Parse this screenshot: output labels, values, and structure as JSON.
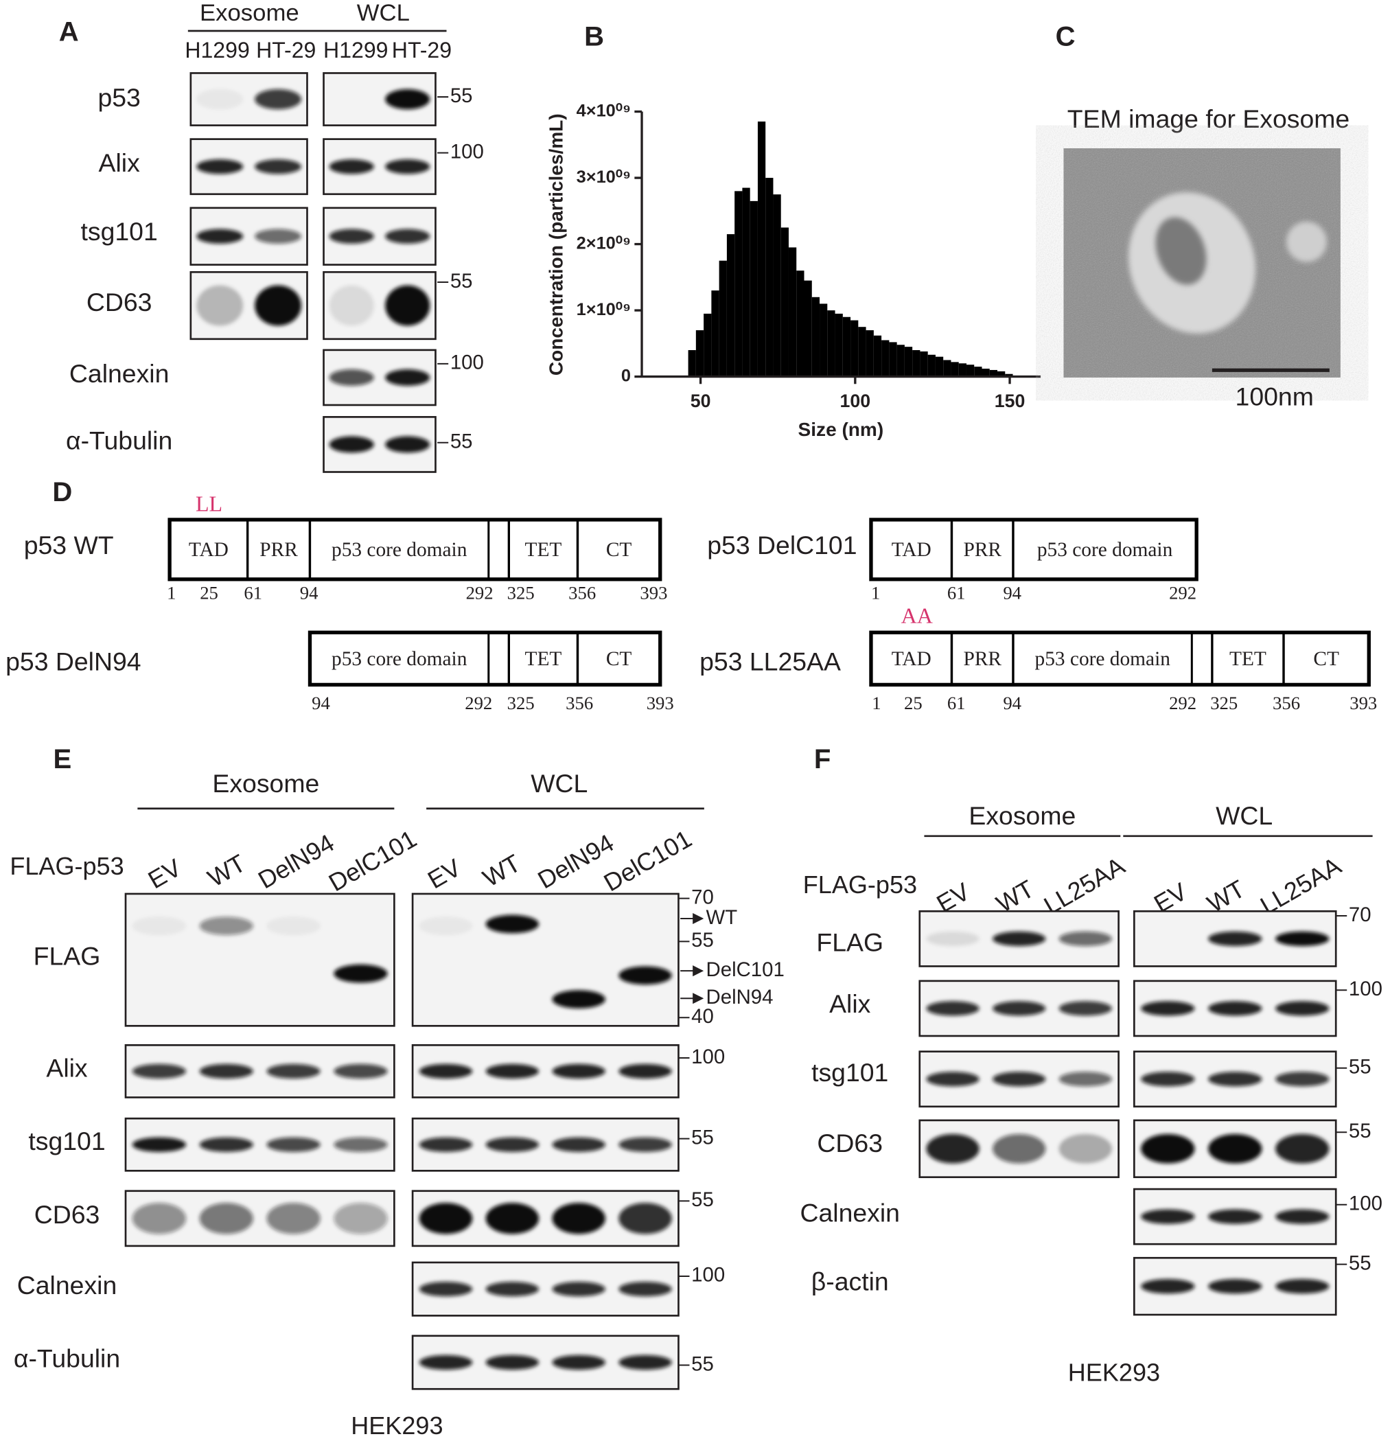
{
  "panel_labels": [
    "A",
    "B",
    "C",
    "D",
    "E",
    "F"
  ],
  "panel_a": {
    "groups": [
      "Exosome",
      "WCL"
    ],
    "lanes": [
      "H1299",
      "HT-29",
      "H1299",
      "HT-29"
    ],
    "rows": [
      {
        "label": "p53",
        "markers": [
          55
        ]
      },
      {
        "label": "Alix",
        "markers": [
          100
        ]
      },
      {
        "label": "tsg101"
      },
      {
        "label": "CD63",
        "markers": [
          55
        ]
      },
      {
        "label": "Calnexin",
        "markers": [
          100
        ]
      },
      {
        "label": "α-Tubulin",
        "markers": [
          55
        ]
      }
    ]
  },
  "panel_b": {
    "type": "histogram",
    "x_label": "Size (nm)",
    "y_label": "Concentration (particles/mL)",
    "bins": [
      46,
      48.5,
      51,
      53.5,
      56,
      58.5,
      61,
      63.5,
      66,
      68.5,
      71,
      73.5,
      76,
      78.5,
      81,
      83.5,
      86,
      88.5,
      91,
      93.5,
      96,
      98.5,
      101,
      103.5,
      106,
      108.5,
      111,
      113.5,
      116,
      118.5,
      121,
      123.5,
      126,
      128.5,
      131,
      133.5,
      136,
      138.5,
      141,
      143.5,
      146,
      148.5,
      151
    ],
    "values": [
      400000000.0,
      700000000.0,
      950000000.0,
      1300000000.0,
      1750000000.0,
      2150000000.0,
      2800000000.0,
      2850000000.0,
      2650000000.0,
      3850000000.0,
      3000000000.0,
      2750000000.0,
      2250000000.0,
      1950000000.0,
      1600000000.0,
      1450000000.0,
      1200000000.0,
      1100000000.0,
      1000000000.0,
      950000000.0,
      900000000.0,
      850000000.0,
      750000000.0,
      700000000.0,
      620000000.0,
      550000000.0,
      520000000.0,
      480000000.0,
      450000000.0,
      400000000.0,
      380000000.0,
      330000000.0,
      300000000.0,
      250000000.0,
      220000000.0,
      200000000.0,
      180000000.0,
      150000000.0,
      120000000.0,
      100000000.0,
      80000000.0,
      40000000.0
    ],
    "color": "#000000",
    "xlim": [
      31,
      160
    ],
    "ylim": [
      0,
      4000000000.0
    ],
    "xticks": [
      50,
      100,
      150
    ],
    "yticks": [
      0,
      {
        "value": 1000000000.0,
        "label": "1×10⁰⁹"
      },
      {
        "value": 2000000000.0,
        "label": "2×10⁰⁹"
      },
      {
        "value": 3000000000.0,
        "label": "3×10⁰⁹"
      },
      {
        "value": 4000000000.0,
        "label": "4×10⁰⁹"
      }
    ]
  },
  "panel_c": {
    "title": "TEM image for Exosome",
    "scale_bar": "100nm"
  },
  "panel_d": {
    "constructs": [
      {
        "name": "p53 WT",
        "mutation": "LL",
        "domains": [
          "TAD",
          "PRR",
          "p53 core domain",
          "TET",
          "CT"
        ],
        "positions": [
          1,
          25,
          61,
          94,
          292,
          325,
          356,
          393
        ]
      },
      {
        "name": "p53 DelC101",
        "domains": [
          "TAD",
          "PRR",
          "p53 core domain"
        ],
        "positions": [
          1,
          61,
          94,
          292
        ]
      },
      {
        "name": "p53 DelN94",
        "domains": [
          "p53 core domain",
          "TET",
          "CT"
        ],
        "positions": [
          94,
          292,
          325,
          356,
          393
        ]
      },
      {
        "name": "p53 LL25AA",
        "mutation": "AA",
        "domains": [
          "TAD",
          "PRR",
          "p53 core domain",
          "TET",
          "CT"
        ],
        "positions": [
          1,
          25,
          61,
          94,
          292,
          325,
          356,
          393
        ]
      }
    ]
  },
  "panel_e": {
    "groups": [
      "Exosome",
      "WCL"
    ],
    "construct_label": "FLAG-p53",
    "lanes": [
      "EV",
      "WT",
      "DelN94",
      "DelC101",
      "EV",
      "WT",
      "DelN94",
      "DelC101"
    ],
    "rows": [
      {
        "label": "FLAG",
        "markers": [
          70,
          55,
          40
        ],
        "arrows": [
          "WT",
          "DelC101",
          "DelN94"
        ]
      },
      {
        "label": "Alix",
        "markers": [
          100
        ]
      },
      {
        "label": "tsg101",
        "markers": [
          55
        ]
      },
      {
        "label": "CD63",
        "markers": [
          55
        ]
      },
      {
        "label": "Calnexin",
        "markers": [
          100
        ]
      },
      {
        "label": "α-Tubulin",
        "markers": [
          55
        ]
      }
    ],
    "cell_line": "HEK293"
  },
  "panel_f": {
    "groups": [
      "Exosome",
      "WCL"
    ],
    "construct_label": "FLAG-p53",
    "lanes": [
      "EV",
      "WT",
      "LL25AA",
      "EV",
      "WT",
      "LL25AA"
    ],
    "rows": [
      {
        "label": "FLAG",
        "markers": [
          70
        ]
      },
      {
        "label": "Alix",
        "markers": [
          100
        ]
      },
      {
        "label": "tsg101",
        "markers": [
          55
        ]
      },
      {
        "label": "CD63",
        "markers": [
          55
        ]
      },
      {
        "label": "Calnexin",
        "markers": [
          100
        ]
      },
      {
        "label": "β-actin",
        "markers": [
          55
        ]
      }
    ],
    "cell_line": "HEK293"
  }
}
